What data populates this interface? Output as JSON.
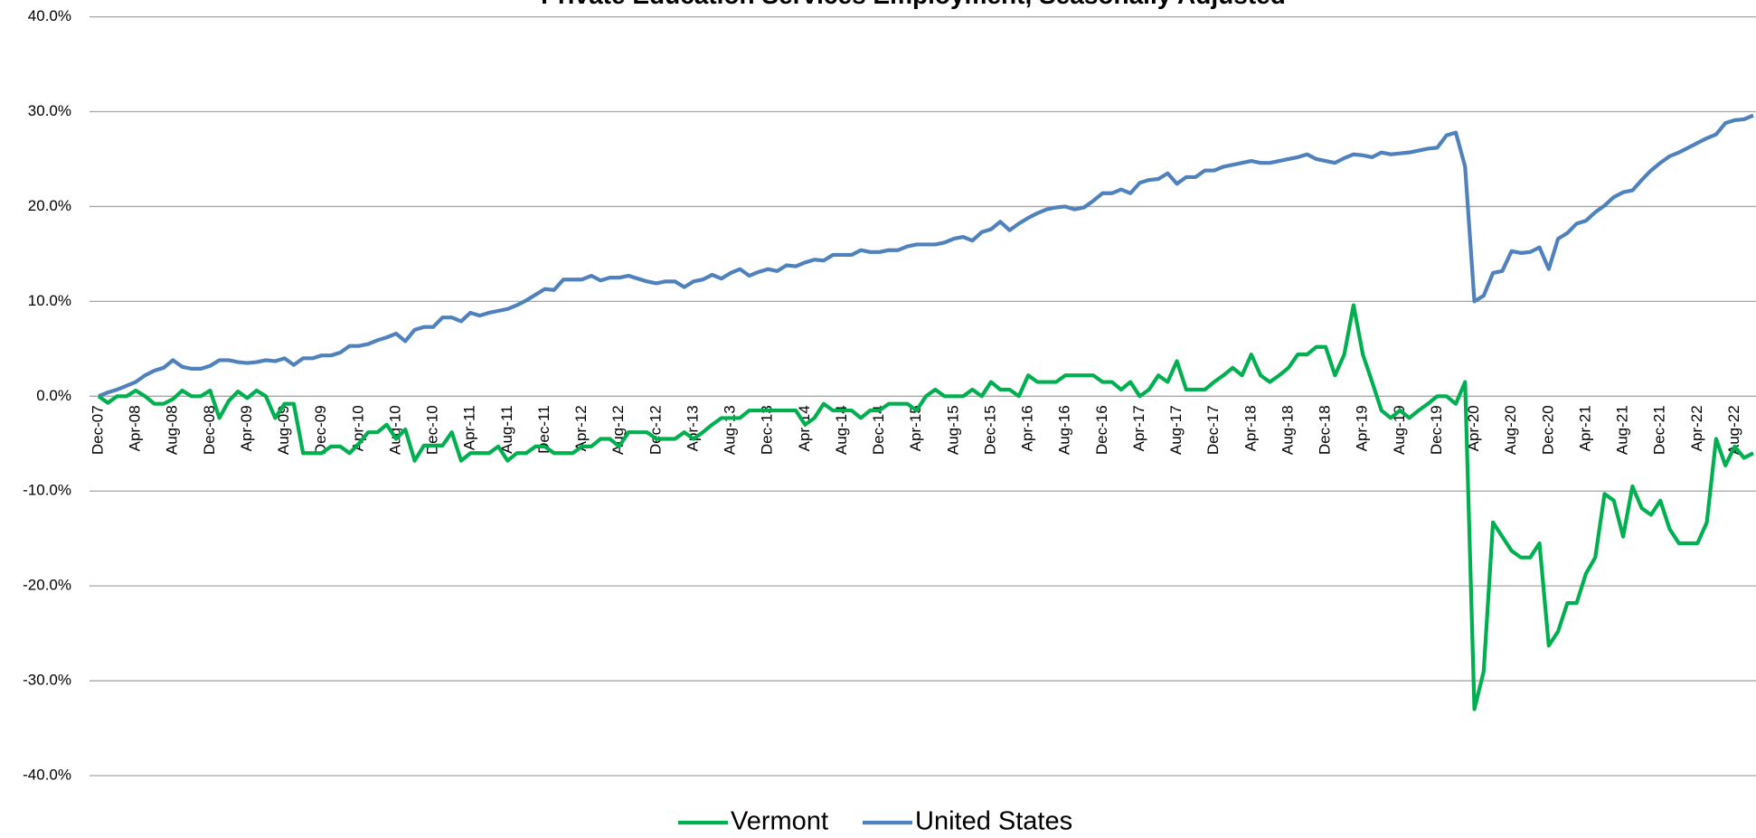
{
  "chart_data": {
    "type": "line",
    "title": "Private Education Services Employment, Seasonally Adjusted",
    "categories": [
      "Dec-07",
      null,
      null,
      null,
      "Apr-08",
      null,
      null,
      null,
      "Aug-08",
      null,
      null,
      null,
      "Dec-08",
      null,
      null,
      null,
      "Apr-09",
      null,
      null,
      null,
      "Aug-09",
      null,
      null,
      null,
      "Dec-09",
      null,
      null,
      null,
      "Apr-10",
      null,
      null,
      null,
      "Aug-10",
      null,
      null,
      null,
      "Dec-10",
      null,
      null,
      null,
      "Apr-11",
      null,
      null,
      null,
      "Aug-11",
      null,
      null,
      null,
      "Dec-11",
      null,
      null,
      null,
      "Apr-12",
      null,
      null,
      null,
      "Aug-12",
      null,
      null,
      null,
      "Dec-12",
      null,
      null,
      null,
      "Apr-13",
      null,
      null,
      null,
      "Aug-13",
      null,
      null,
      null,
      "Dec-13",
      null,
      null,
      null,
      "Apr-14",
      null,
      null,
      null,
      "Aug-14",
      null,
      null,
      null,
      "Dec-14",
      null,
      null,
      null,
      "Apr-15",
      null,
      null,
      null,
      "Aug-15",
      null,
      null,
      null,
      "Dec-15",
      null,
      null,
      null,
      "Apr-16",
      null,
      null,
      null,
      "Aug-16",
      null,
      null,
      null,
      "Dec-16",
      null,
      null,
      null,
      "Apr-17",
      null,
      null,
      null,
      "Aug-17",
      null,
      null,
      null,
      "Dec-17",
      null,
      null,
      null,
      "Apr-18",
      null,
      null,
      null,
      "Aug-18",
      null,
      null,
      null,
      "Dec-18",
      null,
      null,
      null,
      "Apr-19",
      null,
      null,
      null,
      "Aug-19",
      null,
      null,
      null,
      "Dec-19",
      null,
      null,
      null,
      "Apr-20",
      null,
      null,
      null,
      "Aug-20",
      null,
      null,
      null,
      "Dec-20",
      null,
      null,
      null,
      "Apr-21",
      null,
      null,
      null,
      "Aug-21",
      null,
      null,
      null,
      "Dec-21",
      null,
      null,
      null,
      "Apr-22",
      null,
      null,
      null,
      "Aug-22",
      null,
      null
    ],
    "series": [
      {
        "name": "Vermont",
        "color": "#00b050",
        "values": [
          0,
          -0.7,
          0,
          0,
          0.6,
          0,
          -0.8,
          -0.8,
          -0.3,
          0.6,
          0,
          0,
          0.6,
          -2.3,
          -0.5,
          0.5,
          -0.2,
          0.6,
          0,
          -2.3,
          -0.8,
          -0.8,
          -6,
          -6,
          -6,
          -5.3,
          -5.3,
          -6,
          -5,
          -3.8,
          -3.8,
          -3,
          -4.5,
          -3.5,
          -6.8,
          -5.2,
          -5.2,
          -5.2,
          -3.8,
          -6.8,
          -6,
          -6,
          -6,
          -5.3,
          -6.8,
          -6,
          -6,
          -5.3,
          -5.3,
          -6,
          -6,
          -6,
          -5.3,
          -5.3,
          -4.5,
          -4.5,
          -5.3,
          -3.8,
          -3.8,
          -3.8,
          -4.5,
          -4.5,
          -4.5,
          -3.8,
          -4.5,
          -3.8,
          -3,
          -2.3,
          -2.3,
          -2.3,
          -1.5,
          -1.5,
          -1.5,
          -1.5,
          -1.5,
          -1.5,
          -3,
          -2.3,
          -0.8,
          -1.5,
          -1.5,
          -1.5,
          -2.3,
          -1.5,
          -1.5,
          -0.8,
          -0.8,
          -0.8,
          -1.5,
          0,
          0.7,
          0,
          0,
          0,
          0.7,
          0,
          1.5,
          0.7,
          0.7,
          0,
          2.2,
          1.5,
          1.5,
          1.5,
          2.2,
          2.2,
          2.2,
          2.2,
          1.5,
          1.5,
          0.7,
          1.5,
          0,
          0.7,
          2.2,
          1.5,
          3.7,
          0.7,
          0.7,
          0.7,
          1.5,
          2.2,
          3,
          2.2,
          4.4,
          2.2,
          1.5,
          2.2,
          3,
          4.4,
          4.4,
          5.2,
          5.2,
          2.2,
          4.4,
          9.6,
          4.4,
          1.5,
          -1.5,
          -2.3,
          -1.5,
          -2.3,
          -1.5,
          -0.8,
          0,
          0,
          -0.8,
          1.5,
          -33,
          -29,
          -13.3,
          -14.8,
          -16.3,
          -17,
          -17,
          -15.5,
          -26.3,
          -24.8,
          -21.8,
          -21.8,
          -18.7,
          -17,
          -10.3,
          -11,
          -14.8,
          -9.5,
          -11.8,
          -12.5,
          -11,
          -14,
          -15.5,
          -15.5,
          -15.5,
          -13.3,
          -4.5,
          -7.3,
          -5.3,
          -6.5,
          -6
        ]
      },
      {
        "name": "United States",
        "color": "#4f81bd",
        "values": [
          0,
          0.4,
          0.7,
          1.1,
          1.5,
          2.2,
          2.7,
          3.0,
          3.8,
          3.1,
          2.9,
          2.9,
          3.2,
          3.8,
          3.8,
          3.6,
          3.5,
          3.6,
          3.8,
          3.7,
          4.0,
          3.3,
          4.0,
          4.0,
          4.3,
          4.3,
          4.6,
          5.3,
          5.3,
          5.5,
          5.9,
          6.2,
          6.6,
          5.8,
          7.0,
          7.3,
          7.3,
          8.3,
          8.3,
          7.9,
          8.8,
          8.5,
          8.8,
          9.0,
          9.2,
          9.6,
          10.1,
          10.7,
          11.3,
          11.2,
          12.3,
          12.3,
          12.3,
          12.7,
          12.2,
          12.5,
          12.5,
          12.7,
          12.4,
          12.1,
          11.9,
          12.1,
          12.1,
          11.5,
          12.1,
          12.3,
          12.8,
          12.4,
          13.0,
          13.4,
          12.7,
          13.1,
          13.4,
          13.2,
          13.8,
          13.7,
          14.1,
          14.4,
          14.3,
          14.9,
          14.9,
          14.9,
          15.4,
          15.2,
          15.2,
          15.4,
          15.4,
          15.8,
          16.0,
          16.0,
          16.0,
          16.2,
          16.6,
          16.8,
          16.4,
          17.3,
          17.6,
          18.4,
          17.5,
          18.2,
          18.8,
          19.3,
          19.7,
          19.9,
          20.0,
          19.7,
          19.9,
          20.6,
          21.4,
          21.4,
          21.8,
          21.4,
          22.5,
          22.8,
          22.9,
          23.5,
          22.4,
          23.1,
          23.1,
          23.8,
          23.8,
          24.2,
          24.4,
          24.6,
          24.8,
          24.6,
          24.6,
          24.8,
          25.0,
          25.2,
          25.5,
          25.0,
          24.8,
          24.6,
          25.1,
          25.5,
          25.4,
          25.2,
          25.7,
          25.5,
          25.6,
          25.7,
          25.9,
          26.1,
          26.2,
          27.5,
          27.8,
          24.2,
          10.0,
          10.6,
          13.0,
          13.2,
          15.3,
          15.1,
          15.2,
          15.7,
          13.4,
          16.6,
          17.2,
          18.2,
          18.5,
          19.4,
          20.1,
          21.0,
          21.5,
          21.7,
          22.8,
          23.8,
          24.6,
          25.3,
          25.7,
          26.2,
          26.7,
          27.2,
          27.6,
          28.8,
          29.1,
          29.2,
          29.6
        ]
      }
    ],
    "ylim": [
      -40,
      40
    ],
    "yticks": [
      {
        "value": -40,
        "label": "-40.0%"
      },
      {
        "value": -30,
        "label": "-30.0%"
      },
      {
        "value": -20,
        "label": "-20.0%"
      },
      {
        "value": -10,
        "label": "-10.0%"
      },
      {
        "value": 0,
        "label": "0.0%"
      },
      {
        "value": 10,
        "label": "10.0%"
      },
      {
        "value": 20,
        "label": "20.0%"
      },
      {
        "value": 30,
        "label": "30.0%"
      },
      {
        "value": 40,
        "label": "40.0%"
      }
    ],
    "grid": true,
    "legend": "bottom"
  }
}
